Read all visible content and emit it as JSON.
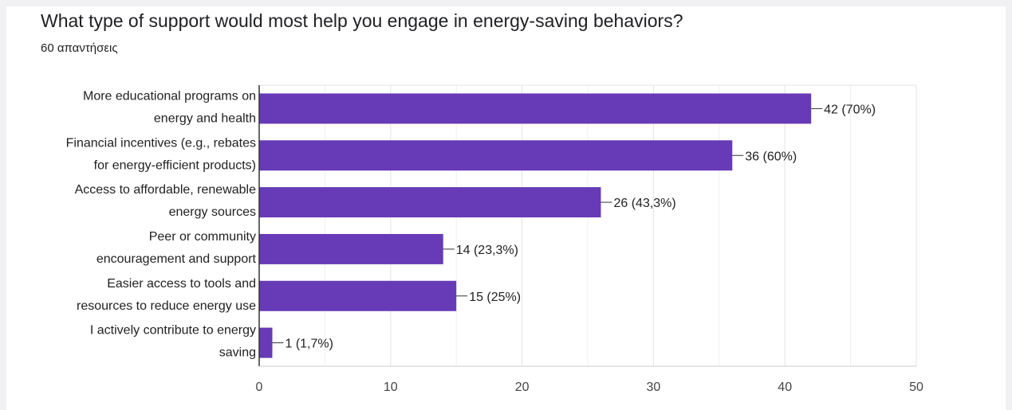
{
  "colors": {
    "bar": "#673ab7",
    "grid": "#e3e3e3",
    "axis": "#333333"
  },
  "chart_data": {
    "type": "bar",
    "orientation": "horizontal",
    "title": "What type of support would most help you engage in energy-saving behaviors?",
    "subtitle": "60 απαντήσεις",
    "categories": [
      [
        "More educational programs on",
        "energy and health"
      ],
      [
        "Financial incentives (e.g., rebates",
        "for energy-efficient products)"
      ],
      [
        "Access to affordable, renewable",
        "energy sources"
      ],
      [
        "Peer or community",
        "encouragement and support"
      ],
      [
        "Easier access to tools and",
        "resources to reduce energy use"
      ],
      [
        "I actively contribute to energy",
        "saving"
      ]
    ],
    "values": [
      42,
      36,
      26,
      14,
      15,
      1
    ],
    "data_labels": [
      "42 (70%)",
      "36 (60%)",
      "26 (43,3%)",
      "14 (23,3%)",
      "15 (25%)",
      "1 (1,7%)"
    ],
    "xlim": [
      0,
      50
    ],
    "xticks": [
      0,
      10,
      20,
      30,
      40,
      50
    ],
    "grid": true,
    "legend": "none"
  }
}
